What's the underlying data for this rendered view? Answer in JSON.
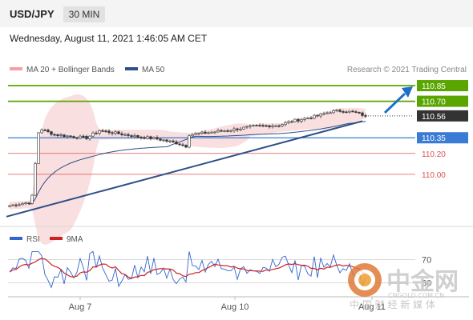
{
  "header": {
    "symbol": "USD/JPY",
    "timeframe": "30 MIN",
    "datetime": "Wednesday, August 11, 2021 1:46:05 AM CET"
  },
  "legend": {
    "bollinger": "MA 20 + Bollinger Bands",
    "ma50": "MA 50",
    "rsi": "RSI",
    "ma9": "9MA"
  },
  "credit": "Research © 2021 Trading Central",
  "levels": [
    {
      "value": "110.85",
      "kind": "resistance"
    },
    {
      "value": "110.70",
      "kind": "resistance"
    },
    {
      "value": "110.56",
      "kind": "current"
    },
    {
      "value": "110.35",
      "kind": "pivot"
    },
    {
      "value": "110.20",
      "kind": "support"
    },
    {
      "value": "110.00",
      "kind": "support"
    }
  ],
  "colors": {
    "resistance": "#5aa500",
    "pivot": "#3a7bd5",
    "support": "#d9534f",
    "bollinger": "#f2b8b8",
    "ma50": "#2e4f88",
    "rsi": "#3366cc",
    "rsi_ma": "#cc2222",
    "candle": "#333333",
    "arrow": "#1f6fc7"
  },
  "watermark": {
    "brand": "中金网",
    "domain": "CNGOLD.COM.CN",
    "slogan": "中 国 财 经 新 媒 体"
  },
  "chart_data": {
    "type": "candlestick",
    "xlabels": [
      "Aug 7",
      "Aug 10",
      "Aug 11"
    ],
    "ylim": [
      109.6,
      110.95
    ],
    "last_price": 110.56,
    "trend_line": [
      [
        0,
        109.64
      ],
      [
        110,
        110.51
      ]
    ],
    "projection_arrow": [
      [
        116,
        110.59
      ],
      [
        125,
        110.85
      ]
    ],
    "rsi_levels": [
      "70",
      "30"
    ],
    "rsi_ylim": [
      10,
      90
    ]
  }
}
